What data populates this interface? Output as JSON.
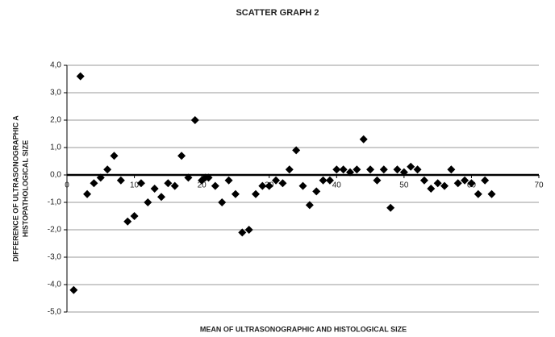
{
  "chart_data": {
    "type": "scatter",
    "title": "SCATTER GRAPH  2",
    "xlabel": "MEAN OF ULTRASONOGRAPHIC AND HISTOLOGICAL SIZE",
    "ylabel": [
      "DIFFERENCE OF ULTRASONOGRAPHIC A",
      "HISTOPATHOLOGICAL SIZE"
    ],
    "color": "#000000",
    "grid": true,
    "xlim": [
      0,
      70
    ],
    "xticks": [
      0,
      10,
      20,
      30,
      40,
      50,
      60,
      70
    ],
    "ylim": [
      -5,
      4
    ],
    "yticks": [
      {
        "value": 4,
        "label": "4,0"
      },
      {
        "value": 3,
        "label": "3,0"
      },
      {
        "value": 2,
        "label": "2,0"
      },
      {
        "value": 1,
        "label": "1,0"
      },
      {
        "value": 0,
        "label": "0,0"
      },
      {
        "value": -1,
        "label": "-1,0"
      },
      {
        "value": -2,
        "label": "-2,0"
      },
      {
        "value": -3,
        "label": "-3,0"
      },
      {
        "value": -4,
        "label": "-4,0"
      },
      {
        "value": -5,
        "label": "-5,0"
      }
    ],
    "x": [
      1,
      2,
      3,
      4,
      5,
      6,
      7,
      8,
      9,
      10,
      11,
      12,
      13,
      14,
      15,
      16,
      17,
      18,
      19,
      20,
      20.5,
      21,
      22,
      23,
      24,
      25,
      26,
      27,
      28,
      29,
      30,
      31,
      32,
      33,
      34,
      35,
      36,
      37,
      38,
      39,
      40,
      41,
      42,
      43,
      44,
      45,
      46,
      47,
      48,
      49,
      50,
      51,
      52,
      53,
      54,
      55,
      56,
      57,
      58,
      59,
      60,
      61,
      62,
      63
    ],
    "values": [
      -4.2,
      3.6,
      -0.7,
      -0.3,
      -0.1,
      0.2,
      0.7,
      -0.2,
      -1.7,
      -1.5,
      -0.3,
      -1.0,
      -0.5,
      -0.8,
      -0.3,
      -0.4,
      0.7,
      -0.1,
      2.0,
      -0.2,
      -0.1,
      -0.1,
      -0.4,
      -1.0,
      -0.2,
      -0.7,
      -2.1,
      -2.0,
      -0.7,
      -0.4,
      -0.4,
      -0.2,
      -0.3,
      0.2,
      0.9,
      -0.4,
      -1.1,
      -0.6,
      -0.2,
      -0.2,
      0.2,
      0.2,
      0.1,
      0.2,
      1.3,
      0.2,
      -0.2,
      0.2,
      -1.2,
      0.2,
      0.1,
      0.3,
      0.2,
      -0.2,
      -0.5,
      -0.3,
      -0.4,
      0.2,
      -0.3,
      -0.2,
      -0.3,
      -0.7,
      -0.2,
      -0.7
    ]
  }
}
